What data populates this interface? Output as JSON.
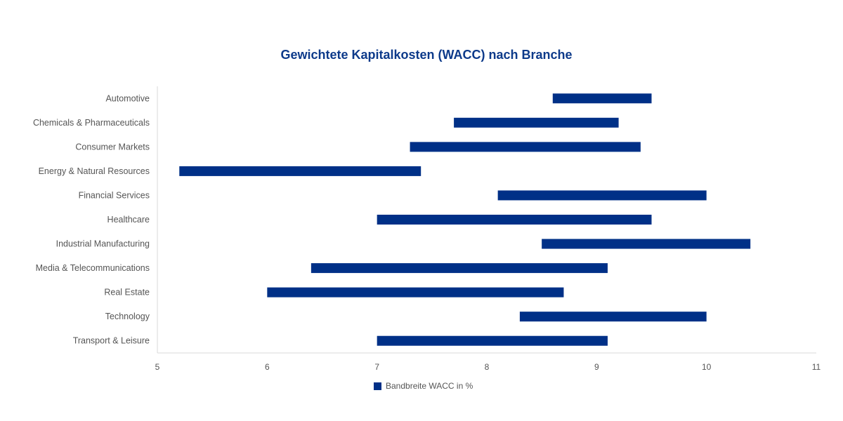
{
  "chart_data": {
    "type": "bar",
    "orientation": "horizontal-floating",
    "title": "Gewichtete Kapitalkosten (WACC) nach Branche",
    "categories": [
      "Automotive",
      "Chemicals & Pharmaceuticals",
      "Consumer Markets",
      "Energy & Natural Resources",
      "Financial Services",
      "Healthcare",
      "Industrial Manufacturing",
      "Media & Telecommunications",
      "Real Estate",
      "Technology",
      "Transport & Leisure"
    ],
    "series": [
      {
        "name": "Bandbreite WACC in %",
        "low": [
          8.6,
          7.7,
          7.3,
          5.2,
          8.1,
          7.0,
          8.5,
          6.4,
          6.0,
          8.3,
          7.0
        ],
        "high": [
          9.5,
          9.2,
          9.4,
          7.4,
          10.0,
          9.5,
          10.4,
          9.1,
          8.7,
          10.0,
          9.1
        ]
      }
    ],
    "xlim": [
      5,
      11
    ],
    "xticks": [
      "5",
      "6",
      "7",
      "8",
      "9",
      "10",
      "11"
    ],
    "xlabel": "",
    "ylabel": "",
    "legend_position": "bottom",
    "colors": {
      "bar": "#003087",
      "title": "#0d3a8a",
      "axis": "#d9d9d9"
    }
  }
}
